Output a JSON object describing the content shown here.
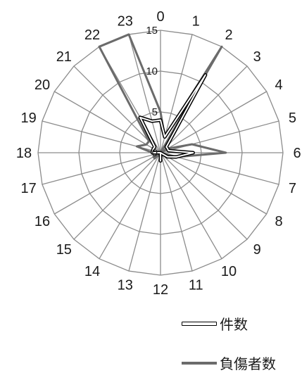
{
  "chart_data": {
    "type": "radar",
    "categories": [
      "0",
      "1",
      "2",
      "3",
      "4",
      "5",
      "6",
      "7",
      "8",
      "9",
      "10",
      "11",
      "12",
      "13",
      "14",
      "15",
      "16",
      "17",
      "18",
      "19",
      "20",
      "21",
      "22",
      "23"
    ],
    "r_ticks": [
      "0",
      "5",
      "10",
      "15"
    ],
    "r_range": [
      0,
      15
    ],
    "grid": true,
    "legend_position": "bottom-right",
    "series": [
      {
        "name": "件数",
        "values": [
          4,
          2,
          11,
          1,
          1,
          1,
          4,
          2,
          1,
          0,
          0,
          0,
          1,
          0,
          0,
          0,
          0,
          0,
          1,
          1,
          1,
          1,
          5,
          4
        ],
        "color": "#000000",
        "style": "outline"
      },
      {
        "name": "負傷者数",
        "values": [
          5,
          2,
          15,
          0,
          1,
          4,
          8,
          2,
          0,
          0,
          0,
          0,
          1,
          0,
          0,
          1,
          1,
          0,
          1,
          3,
          2,
          2,
          15,
          15
        ],
        "color": "#6b6b6b",
        "style": "solid"
      }
    ]
  }
}
